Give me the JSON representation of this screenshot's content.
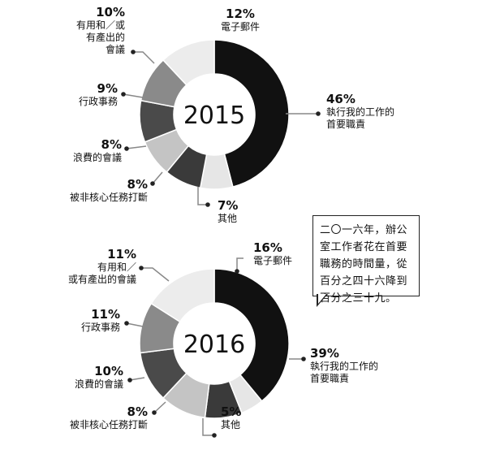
{
  "chart_data": [
    {
      "type": "donut",
      "center_label": "2015",
      "categories": [
        "執行我的工作的首要職責",
        "其他",
        "被非核心任務打斷",
        "浪費的會議",
        "行政事務",
        "有用和／或有產出的會議",
        "電子郵件"
      ],
      "values": [
        46,
        7,
        8,
        8,
        9,
        10,
        12
      ],
      "value_labels": [
        "46%",
        "7%",
        "8%",
        "8%",
        "9%",
        "10%",
        "12%"
      ],
      "label_lines": [
        [
          "執行我的工作的",
          "首要職責"
        ],
        [
          "其他"
        ],
        [
          "被非核心任務打斷"
        ],
        [
          "浪費的會議"
        ],
        [
          "行政事務"
        ],
        [
          "有用和／或",
          "有產出的",
          "會議"
        ],
        [
          "電子郵件"
        ]
      ],
      "colors": [
        "#111111",
        "#e6e6e6",
        "#3a3a3a",
        "#c4c4c4",
        "#4a4a4a",
        "#8a8a8a",
        "#ececec"
      ]
    },
    {
      "type": "donut",
      "center_label": "2016",
      "categories": [
        "執行我的工作的首要職責",
        "其他",
        "被非核心任務打斷",
        "浪費的會議",
        "行政事務",
        "有用和／或有產出的會議",
        "電子郵件"
      ],
      "values": [
        39,
        5,
        8,
        10,
        11,
        11,
        16
      ],
      "value_labels": [
        "39%",
        "5%",
        "8%",
        "10%",
        "11%",
        "11%",
        "16%"
      ],
      "label_lines": [
        [
          "執行我的工作的",
          "首要職責"
        ],
        [
          "其他"
        ],
        [
          "被非核心任務打斷"
        ],
        [
          "浪費的會議"
        ],
        [
          "行政事務"
        ],
        [
          "有用和／",
          "或有產出的會議"
        ],
        [
          "電子郵件"
        ]
      ],
      "colors": [
        "#111111",
        "#e6e6e6",
        "#3a3a3a",
        "#c4c4c4",
        "#4a4a4a",
        "#8a8a8a",
        "#ececec"
      ]
    }
  ],
  "callout": {
    "lines": [
      "二〇一六年，辦公",
      "室工作者花在首要",
      "職務的時間量，從",
      "百分之四十六降到",
      "百分之三十九。"
    ]
  }
}
